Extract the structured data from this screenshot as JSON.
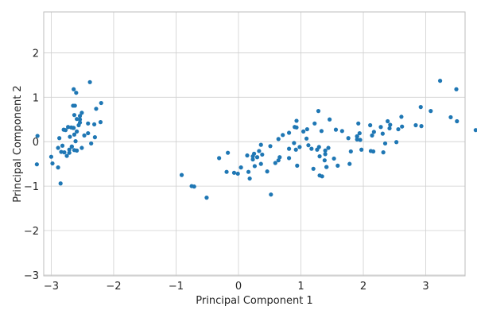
{
  "chart_data": {
    "type": "scatter",
    "xlabel": "Principal Component 1",
    "ylabel": "Principal Component 2",
    "xlim": [
      -3.12,
      3.63
    ],
    "ylim": [
      -3.02,
      2.92
    ],
    "x_ticks": [
      -3,
      -2,
      -1,
      0,
      1,
      2,
      3
    ],
    "y_ticks": [
      -3,
      -2,
      -1,
      0,
      1,
      2
    ],
    "x_tick_labels": [
      "−3",
      "−2",
      "−1",
      "0",
      "1",
      "2",
      "3"
    ],
    "y_tick_labels": [
      "−3",
      "−2",
      "−1",
      "0",
      "1",
      "2"
    ],
    "grid": true,
    "marker_color": "#1f77b4",
    "points": [
      [
        -2.68,
        0.32
      ],
      [
        -2.71,
        -0.18
      ],
      [
        -2.89,
        -0.14
      ],
      [
        -2.75,
        -0.32
      ],
      [
        -2.73,
        0.33
      ],
      [
        -2.28,
        0.74
      ],
      [
        -2.82,
        -0.09
      ],
      [
        -2.63,
        0.16
      ],
      [
        -2.89,
        -0.58
      ],
      [
        -2.67,
        -0.11
      ],
      [
        -2.51,
        0.65
      ],
      [
        -2.61,
        0.01
      ],
      [
        -2.79,
        -0.24
      ],
      [
        -3.23,
        -0.51
      ],
      [
        -2.64,
        1.18
      ],
      [
        -2.38,
        1.34
      ],
      [
        -2.62,
        0.81
      ],
      [
        -2.65,
        0.31
      ],
      [
        -2.2,
        0.87
      ],
      [
        -2.59,
        0.51
      ],
      [
        -2.31,
        0.39
      ],
      [
        -2.54,
        0.43
      ],
      [
        -3.22,
        0.13
      ],
      [
        -2.3,
        0.1
      ],
      [
        -2.36,
        -0.04
      ],
      [
        -2.51,
        -0.14
      ],
      [
        -2.47,
        0.14
      ],
      [
        -2.56,
        0.37
      ],
      [
        -2.64,
        0.31
      ],
      [
        -2.63,
        -0.19
      ],
      [
        -2.59,
        -0.2
      ],
      [
        -2.41,
        0.41
      ],
      [
        -2.65,
        0.81
      ],
      [
        -2.6,
        1.1
      ],
      [
        -2.67,
        -0.11
      ],
      [
        -2.87,
        0.08
      ],
      [
        -2.63,
        0.6
      ],
      [
        -2.8,
        0.27
      ],
      [
        -2.98,
        -0.49
      ],
      [
        -2.59,
        0.23
      ],
      [
        -2.77,
        0.26
      ],
      [
        -2.85,
        -0.94
      ],
      [
        -3.0,
        -0.34
      ],
      [
        -2.41,
        0.19
      ],
      [
        -2.21,
        0.44
      ],
      [
        -2.71,
        -0.25
      ],
      [
        -2.54,
        0.5
      ],
      [
        -2.84,
        -0.23
      ],
      [
        -2.54,
        0.58
      ],
      [
        -2.7,
        0.11
      ],
      [
        1.28,
        0.69
      ],
      [
        0.93,
        0.32
      ],
      [
        1.46,
        0.5
      ],
      [
        0.18,
        -0.83
      ],
      [
        1.09,
        0.07
      ],
      [
        0.64,
        -0.42
      ],
      [
        1.1,
        0.28
      ],
      [
        -0.75,
        -1.0
      ],
      [
        1.04,
        0.23
      ],
      [
        -0.01,
        -0.72
      ],
      [
        -0.51,
        -1.26
      ],
      [
        0.51,
        -0.1
      ],
      [
        0.26,
        -0.55
      ],
      [
        0.98,
        -0.12
      ],
      [
        -0.17,
        -0.25
      ],
      [
        0.93,
        0.47
      ],
      [
        0.66,
        -0.35
      ],
      [
        0.23,
        -0.33
      ],
      [
        0.94,
        -0.54
      ],
      [
        0.04,
        -0.58
      ],
      [
        1.12,
        -0.08
      ],
      [
        0.36,
        -0.07
      ],
      [
        1.3,
        -0.33
      ],
      [
        0.92,
        -0.18
      ],
      [
        0.71,
        0.15
      ],
      [
        0.9,
        0.33
      ],
      [
        1.33,
        0.24
      ],
      [
        1.56,
        0.27
      ],
      [
        0.81,
        -0.16
      ],
      [
        -0.31,
        -0.37
      ],
      [
        -0.07,
        -0.7
      ],
      [
        -0.19,
        -0.68
      ],
      [
        0.14,
        -0.31
      ],
      [
        1.38,
        -0.42
      ],
      [
        0.59,
        -0.48
      ],
      [
        0.81,
        0.2
      ],
      [
        1.22,
        0.41
      ],
      [
        0.81,
        -0.37
      ],
      [
        0.25,
        -0.27
      ],
      [
        0.16,
        -0.68
      ],
      [
        0.46,
        -0.67
      ],
      [
        0.89,
        -0.03
      ],
      [
        0.23,
        -0.4
      ],
      [
        -0.71,
        -1.01
      ],
      [
        0.36,
        -0.5
      ],
      [
        0.33,
        -0.21
      ],
      [
        0.38,
        -0.29
      ],
      [
        0.64,
        0.06
      ],
      [
        -0.91,
        -0.75
      ],
      [
        0.3,
        -0.35
      ],
      [
        2.53,
        -0.01
      ],
      [
        1.41,
        -0.57
      ],
      [
        2.62,
        0.34
      ],
      [
        1.97,
        -0.18
      ],
      [
        2.35,
        -0.04
      ],
      [
        3.4,
        0.55
      ],
      [
        0.52,
        -1.19
      ],
      [
        2.93,
        0.35
      ],
      [
        2.32,
        -0.24
      ],
      [
        2.92,
        0.78
      ],
      [
        1.66,
        0.24
      ],
      [
        1.8,
        -0.22
      ],
      [
        2.17,
        0.22
      ],
      [
        1.34,
        -0.78
      ],
      [
        1.59,
        -0.54
      ],
      [
        1.9,
        0.12
      ],
      [
        1.95,
        0.04
      ],
      [
        3.49,
        1.18
      ],
      [
        3.8,
        0.26
      ],
      [
        1.3,
        -0.76
      ],
      [
        2.43,
        0.38
      ],
      [
        1.2,
        -0.61
      ],
      [
        3.5,
        0.46
      ],
      [
        1.39,
        -0.2
      ],
      [
        2.28,
        0.33
      ],
      [
        2.61,
        0.56
      ],
      [
        1.26,
        -0.18
      ],
      [
        1.29,
        -0.12
      ],
      [
        2.12,
        -0.21
      ],
      [
        2.39,
        0.46
      ],
      [
        2.84,
        0.37
      ],
      [
        3.23,
        1.37
      ],
      [
        2.16,
        -0.22
      ],
      [
        1.44,
        -0.14
      ],
      [
        1.78,
        -0.5
      ],
      [
        3.08,
        0.69
      ],
      [
        2.14,
        0.14
      ],
      [
        1.9,
        0.05
      ],
      [
        1.17,
        -0.16
      ],
      [
        2.11,
        0.37
      ],
      [
        2.31,
        0.18
      ],
      [
        1.92,
        0.41
      ],
      [
        1.41,
        -0.57
      ],
      [
        2.56,
        0.28
      ],
      [
        2.42,
        0.3
      ],
      [
        1.94,
        0.19
      ],
      [
        1.53,
        -0.38
      ],
      [
        1.76,
        0.08
      ],
      [
        1.9,
        0.12
      ],
      [
        1.39,
        -0.28
      ]
    ]
  }
}
